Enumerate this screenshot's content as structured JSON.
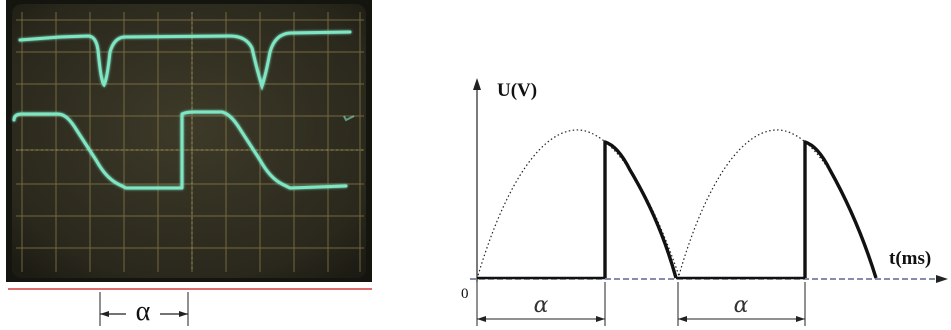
{
  "oscilloscope": {
    "alpha_label": "α"
  },
  "diagram": {
    "y_axis_label": "U(V)",
    "x_axis_label": "t(ms)",
    "origin_label": "0",
    "alpha_label_1": "α",
    "alpha_label_2": "α"
  },
  "colors": {
    "trace": "#7fe6c4",
    "screen_bg": "#2b2a1f",
    "grid": "#8a7d4a",
    "underline": "#d43c3c",
    "curve": "#111111"
  }
}
